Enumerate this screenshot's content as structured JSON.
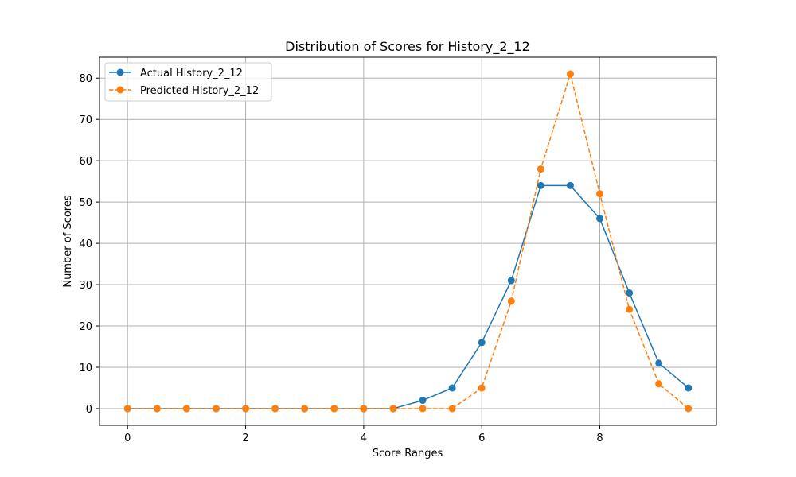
{
  "chart_data": {
    "type": "line",
    "title": "Distribution of Scores for History_2_12",
    "xlabel": "Score Ranges",
    "ylabel": "Number of Scores",
    "xlim": [
      -0.475,
      9.975
    ],
    "ylim": [
      -4.05,
      85.05
    ],
    "xticks": [
      "0",
      "2",
      "4",
      "6",
      "8"
    ],
    "yticks": [
      "0",
      "10",
      "20",
      "30",
      "40",
      "50",
      "60",
      "70",
      "80"
    ],
    "grid": true,
    "legend_position": "upper-left",
    "x": [
      0,
      0.5,
      1,
      1.5,
      2,
      2.5,
      3,
      3.5,
      4,
      4.5,
      5,
      5.5,
      6,
      6.5,
      7,
      7.5,
      8,
      8.5,
      9,
      9.5
    ],
    "series": [
      {
        "name": "Actual History_2_12",
        "color": "#1f77b4",
        "style": "solid",
        "values": [
          0,
          0,
          0,
          0,
          0,
          0,
          0,
          0,
          0,
          0,
          2,
          5,
          16,
          31,
          54,
          54,
          46,
          28,
          11,
          5
        ]
      },
      {
        "name": "Predicted History_2_12",
        "color": "#ff7f0e",
        "style": "dashed",
        "values": [
          0,
          0,
          0,
          0,
          0,
          0,
          0,
          0,
          0,
          0,
          0,
          0,
          5,
          26,
          58,
          81,
          52,
          24,
          6,
          0
        ]
      }
    ]
  }
}
